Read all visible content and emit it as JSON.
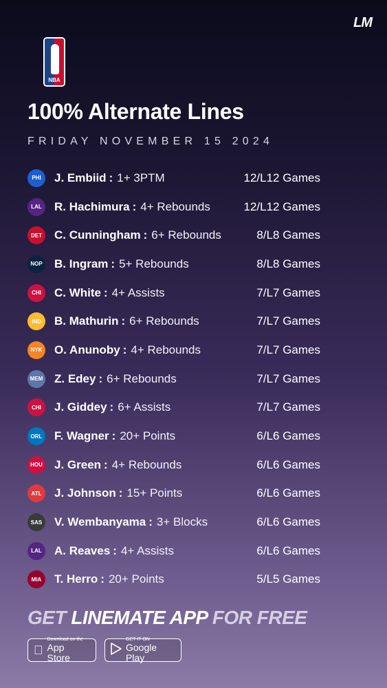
{
  "brand": {
    "logo_text": "LM"
  },
  "league": {
    "logo_text": "NBA"
  },
  "header": {
    "title": "100% Alternate Lines",
    "date": "FRIDAY NOVEMBER 15 2024"
  },
  "rows": [
    {
      "team": "PHI",
      "color": "#1d5fcf",
      "player": "J. Embiid",
      "prop": "1+ 3PTM",
      "games": "12/L12 Games"
    },
    {
      "team": "LAL",
      "color": "#552583",
      "player": "R. Hachimura",
      "prop": "4+ Rebounds",
      "games": "12/L12 Games"
    },
    {
      "team": "DET",
      "color": "#c8102e",
      "player": "C. Cunningham",
      "prop": "6+ Rebounds",
      "games": "8/L8 Games"
    },
    {
      "team": "NOP",
      "color": "#0c2340",
      "player": "B. Ingram",
      "prop": "5+ Rebounds",
      "games": "8/L8 Games"
    },
    {
      "team": "CHI",
      "color": "#ce1141",
      "player": "C. White",
      "prop": "4+ Assists",
      "games": "7/L7 Games"
    },
    {
      "team": "IND",
      "color": "#fdbb30",
      "player": "B. Mathurin",
      "prop": "6+ Rebounds",
      "games": "7/L7 Games"
    },
    {
      "team": "NYK",
      "color": "#f58426",
      "player": "O. Anunoby",
      "prop": "4+ Rebounds",
      "games": "7/L7 Games"
    },
    {
      "team": "MEM",
      "color": "#5d76a9",
      "player": "Z. Edey",
      "prop": "6+ Rebounds",
      "games": "7/L7 Games"
    },
    {
      "team": "CHI",
      "color": "#ce1141",
      "player": "J. Giddey",
      "prop": "6+ Assists",
      "games": "7/L7 Games"
    },
    {
      "team": "ORL",
      "color": "#0077c0",
      "player": "F. Wagner",
      "prop": "20+ Points",
      "games": "6/L6 Games"
    },
    {
      "team": "HOU",
      "color": "#ce1141",
      "player": "J. Green",
      "prop": "4+ Rebounds",
      "games": "6/L6 Games"
    },
    {
      "team": "ATL",
      "color": "#e03a3e",
      "player": "J. Johnson",
      "prop": "15+ Points",
      "games": "6/L6 Games"
    },
    {
      "team": "SAS",
      "color": "#3a3a3a",
      "player": "V. Wembanyama",
      "prop": "3+ Blocks",
      "games": "6/L6 Games"
    },
    {
      "team": "LAL",
      "color": "#552583",
      "player": "A. Reaves",
      "prop": "4+ Assists",
      "games": "6/L6 Games"
    },
    {
      "team": "MIA",
      "color": "#98002e",
      "player": "T. Herro",
      "prop": "20+ Points",
      "games": "5/L5 Games"
    }
  ],
  "cta": {
    "part1": "GET ",
    "part2": "LINEMATE APP ",
    "part3": "FOR FREE"
  },
  "stores": {
    "apple_small": "Download on the",
    "apple_big": "App Store",
    "google_small": "GET IT ON",
    "google_big": "Google Play"
  }
}
